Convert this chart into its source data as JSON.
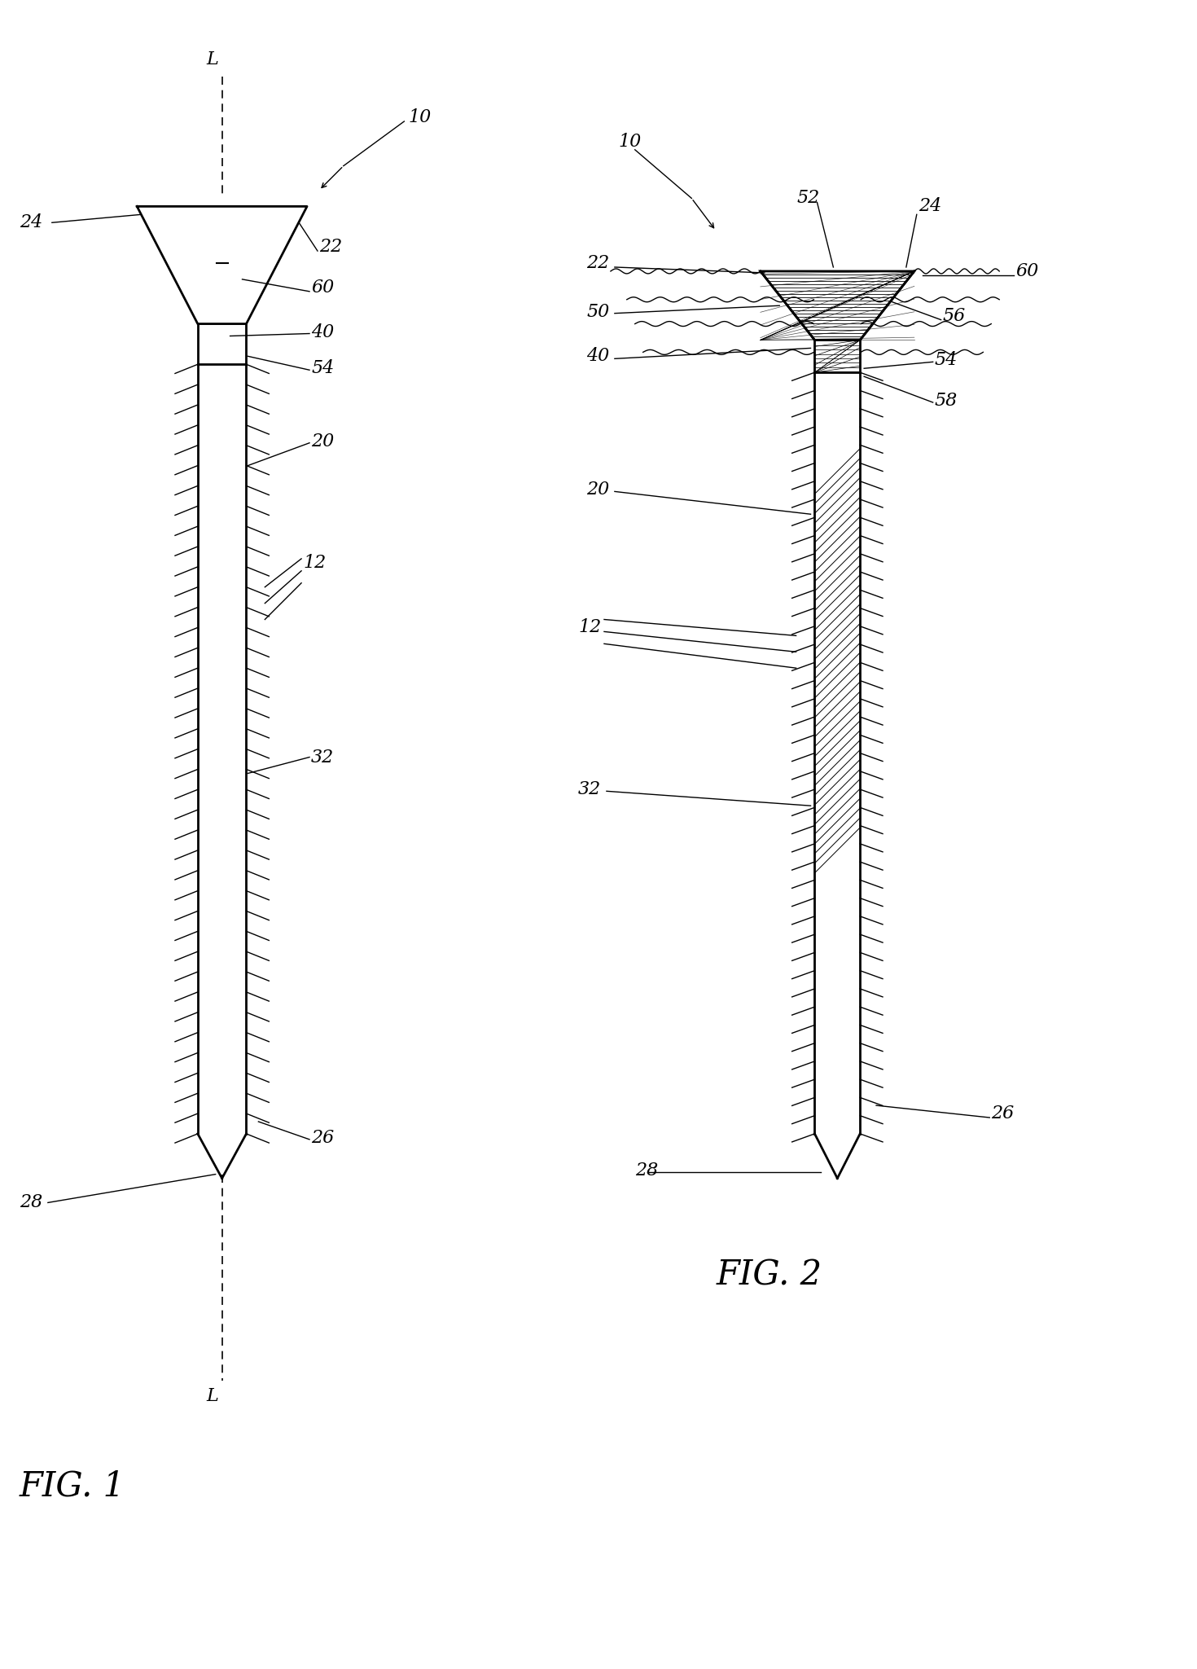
{
  "fig_width": 14.7,
  "fig_height": 20.49,
  "dpi": 100,
  "bg_color": "#ffffff",
  "line_color": "#000000",
  "fig1_label": "FIG. 1",
  "fig2_label": "FIG. 2"
}
